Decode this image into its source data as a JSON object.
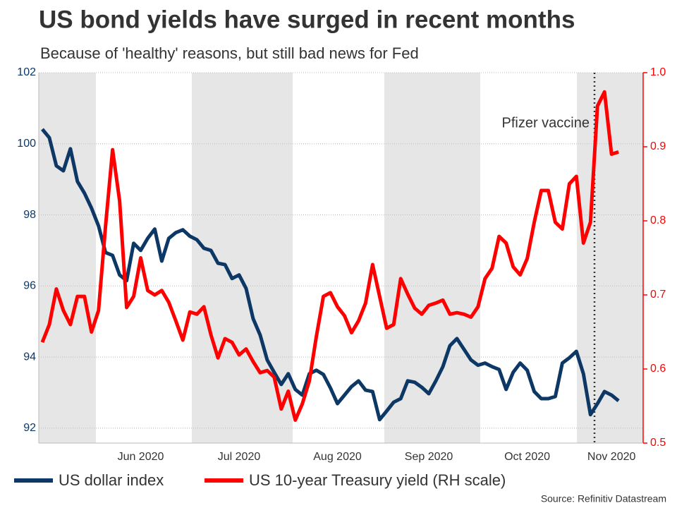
{
  "chart_data": {
    "type": "line",
    "title": "US bond yields have surged in recent months",
    "subtitle": "Because of 'healthy' reasons, but still bad news for Fed",
    "source": "Source: Refinitiv Datastream",
    "annotation": "Pfizer vaccine",
    "categories": [
      null,
      null,
      null,
      null,
      null,
      null,
      null,
      null,
      null,
      null,
      null,
      null,
      null,
      null,
      "Jun 2020",
      null,
      null,
      null,
      null,
      null,
      null,
      null,
      null,
      null,
      null,
      null,
      null,
      null,
      "Jul 2020",
      null,
      null,
      null,
      null,
      null,
      null,
      null,
      null,
      null,
      null,
      null,
      null,
      null,
      "Aug 2020",
      null,
      null,
      null,
      null,
      null,
      null,
      null,
      null,
      null,
      null,
      null,
      null,
      "Sep 2020",
      null,
      null,
      null,
      null,
      null,
      null,
      null,
      null,
      null,
      null,
      null,
      null,
      null,
      "Oct 2020",
      null,
      null,
      null,
      null,
      null,
      null,
      null,
      null,
      null,
      null,
      null,
      "Nov 2020",
      null,
      null,
      null,
      null
    ],
    "series": [
      {
        "name": "US dollar index",
        "color": "#0d3765",
        "axis": "y",
        "values": [
          100.41,
          100.17,
          99.38,
          99.24,
          99.86,
          98.94,
          98.61,
          98.19,
          97.69,
          96.94,
          96.86,
          96.31,
          96.15,
          97.2,
          97.0,
          97.34,
          97.6,
          96.7,
          97.34,
          97.5,
          97.58,
          97.4,
          97.3,
          97.06,
          97.0,
          96.64,
          96.6,
          96.21,
          96.31,
          95.93,
          95.08,
          94.62,
          93.92,
          93.57,
          93.23,
          93.53,
          93.09,
          92.93,
          93.53,
          93.63,
          93.51,
          93.13,
          92.69,
          92.93,
          93.17,
          93.33,
          93.07,
          93.03,
          92.24,
          92.48,
          92.73,
          92.83,
          93.33,
          93.29,
          93.15,
          92.97,
          93.33,
          93.73,
          94.32,
          94.52,
          94.22,
          93.92,
          93.77,
          93.83,
          93.73,
          93.65,
          93.09,
          93.57,
          93.83,
          93.63,
          93.03,
          92.83,
          92.83,
          92.89,
          93.83,
          93.98,
          94.16,
          93.53,
          92.38,
          92.69,
          93.03,
          92.93,
          92.77,
          null,
          null,
          null
        ]
      },
      {
        "name": "US 10-year Treasury yield (RH scale)",
        "color": "#ff0000",
        "axis": "y2",
        "values": [
          0.636,
          0.66,
          0.708,
          0.679,
          0.66,
          0.698,
          0.698,
          0.65,
          0.679,
          0.793,
          0.896,
          0.827,
          0.683,
          0.698,
          0.75,
          0.706,
          0.7,
          0.706,
          0.69,
          0.665,
          0.639,
          0.677,
          0.674,
          0.684,
          0.646,
          0.615,
          0.641,
          0.636,
          0.619,
          0.627,
          0.61,
          0.595,
          0.598,
          0.589,
          0.546,
          0.57,
          0.531,
          0.553,
          0.584,
          0.644,
          0.698,
          0.703,
          0.684,
          0.672,
          0.649,
          0.665,
          0.689,
          0.741,
          0.698,
          0.655,
          0.66,
          0.722,
          0.701,
          0.682,
          0.674,
          0.686,
          0.689,
          0.693,
          0.674,
          0.676,
          0.674,
          0.67,
          0.684,
          0.722,
          0.736,
          0.779,
          0.77,
          0.738,
          0.727,
          0.749,
          0.798,
          0.841,
          0.841,
          0.798,
          0.789,
          0.85,
          0.86,
          0.77,
          0.798,
          0.955,
          0.974,
          0.89,
          0.893,
          null,
          null,
          null
        ]
      }
    ],
    "ylim": [
      91.58,
      102
    ],
    "yticks": [
      92,
      94,
      96,
      98,
      100,
      102
    ],
    "y2lim": [
      0.5,
      1.0
    ],
    "y2ticks": [
      0.5,
      0.6,
      0.7,
      0.8,
      0.9,
      {
        "value": 1,
        "label": "1.0"
      }
    ],
    "grid": true
  }
}
